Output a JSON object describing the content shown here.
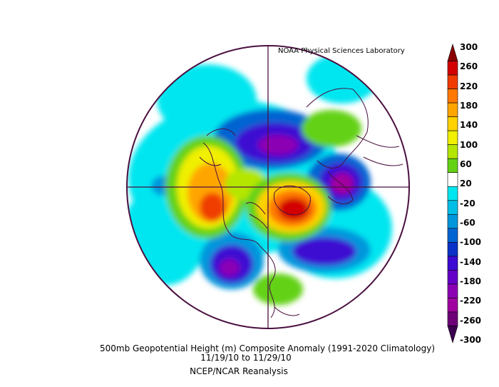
{
  "header": {
    "credit": "NOAA Physical Sciences Laboratory"
  },
  "footer": {
    "title": "500mb Geopotential Height (m) Composite Anomaly (1991-2020 Climatology)",
    "dates": "11/19/10   to 11/29/10",
    "source": "NCEP/NCAR Reanalysis"
  },
  "colorbar": {
    "labels": [
      "300",
      "260",
      "220",
      "180",
      "140",
      "100",
      "60",
      "20",
      "-20",
      "-60",
      "-100",
      "-140",
      "-180",
      "-220",
      "-260",
      "-300"
    ],
    "colors": [
      "#8b0000",
      "#d20000",
      "#f03c00",
      "#ff7800",
      "#ffa500",
      "#ffd200",
      "#f0f000",
      "#b4e600",
      "#64d214",
      "#ffffff",
      "#00e6f0",
      "#00bee6",
      "#0096dc",
      "#0064d2",
      "#0a32c8",
      "#3c0ad2",
      "#6400c8",
      "#8c00b4",
      "#a000a0",
      "#6e0078",
      "#3c0050"
    ]
  },
  "map": {
    "projection": "north-polar-stereographic",
    "anomalies": [
      {
        "region": "western-north-atlantic-greenland",
        "sign": "positive",
        "peak_m": 260
      },
      {
        "region": "north-pacific-alaska",
        "sign": "positive",
        "peak_m": 220
      },
      {
        "region": "scandinavia-western-europe",
        "sign": "negative",
        "peak_m": -220
      },
      {
        "region": "siberia-arctic",
        "sign": "negative",
        "peak_m": -180
      },
      {
        "region": "eastern-north-pacific",
        "sign": "negative",
        "peak_m": -180
      },
      {
        "region": "north-atlantic-south",
        "sign": "negative",
        "peak_m": -140
      },
      {
        "region": "east-asia",
        "sign": "positive",
        "peak_m": 60
      },
      {
        "region": "eastern-united-states",
        "sign": "positive",
        "peak_m": 60
      }
    ]
  }
}
